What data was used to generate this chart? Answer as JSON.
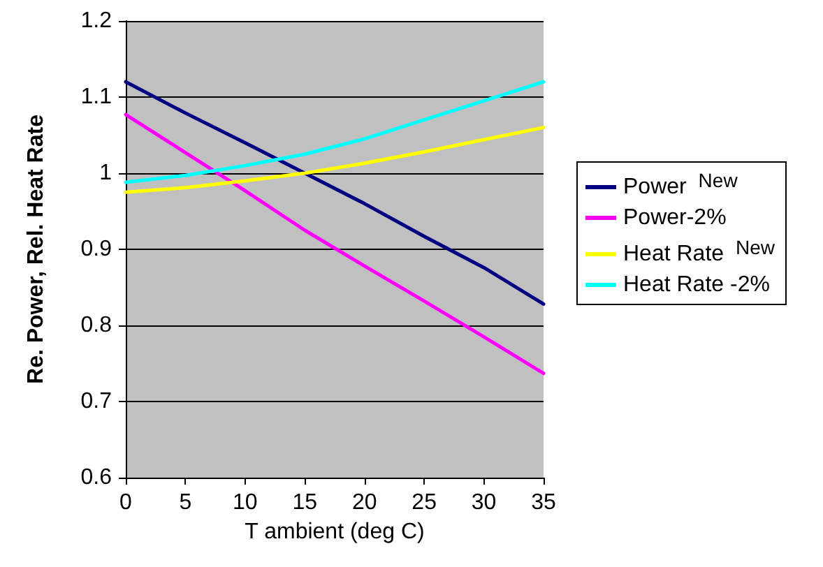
{
  "chart_data": {
    "type": "line",
    "xlabel": "T ambient (deg C)",
    "ylabel": "Re. Power, Rel. Heat Rate",
    "x": [
      0,
      5,
      10,
      15,
      20,
      25,
      30,
      35
    ],
    "series": [
      {
        "name": "Power $^{New}$",
        "color": "#000080",
        "values": [
          1.12,
          1.079,
          1.04,
          1.0,
          0.96,
          0.917,
          0.876,
          0.828
        ]
      },
      {
        "name": "Power-2%",
        "color": "#ff00ff",
        "values": [
          1.077,
          1.027,
          0.977,
          0.925,
          0.878,
          0.832,
          0.785,
          0.737
        ]
      },
      {
        "name": "Heat Rate $^{New}$",
        "color": "#ffff00",
        "values": [
          0.975,
          0.981,
          0.99,
          1.0,
          1.013,
          1.028,
          1.044,
          1.06
        ]
      },
      {
        "name": "Heat Rate -2%",
        "color": "#00ffff",
        "values": [
          0.988,
          0.997,
          1.01,
          1.025,
          1.045,
          1.07,
          1.095,
          1.12
        ]
      }
    ],
    "xlim": [
      0,
      35
    ],
    "xticks": [
      0,
      5,
      10,
      15,
      20,
      25,
      30,
      35
    ],
    "ylim": [
      0.6,
      1.2
    ],
    "yticks": [
      0.6,
      0.7,
      0.8,
      0.9,
      1,
      1.1,
      1.2
    ],
    "grid": "y",
    "legend": "right",
    "marker": "none",
    "line_style": "solid"
  }
}
